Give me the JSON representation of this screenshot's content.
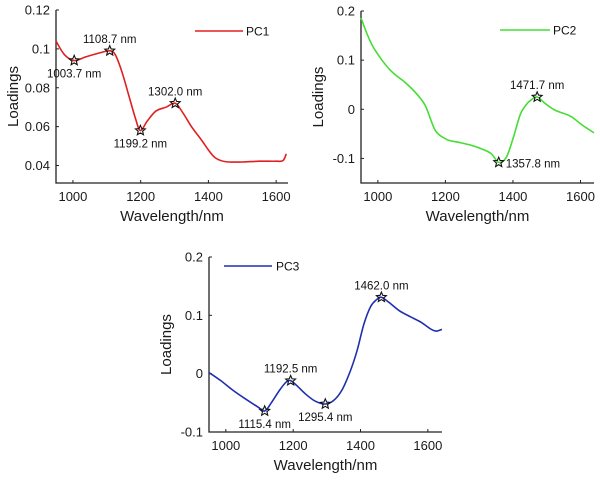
{
  "chart_data": [
    {
      "type": "line",
      "id": "pc1",
      "xlabel": "Wavelength/nm",
      "ylabel": "Loadings",
      "xlim": [
        950,
        1635
      ],
      "ylim": [
        0.031,
        0.12
      ],
      "xticks": [
        1000,
        1200,
        1400,
        1600
      ],
      "xtick_labels": [
        "1000",
        "1200",
        "1400",
        "1600"
      ],
      "yticks": [
        0.04,
        0.06,
        0.08,
        0.1,
        0.12
      ],
      "ytick_labels": [
        "0.04",
        "0.06",
        "0.08",
        "0.1",
        "0.12"
      ],
      "legend": {
        "label": "PC1",
        "placement": "top-right"
      },
      "color": "#e02020",
      "series": [
        {
          "name": "PC1",
          "x": [
            950,
            975,
            1003.7,
            1040,
            1080,
            1108.7,
            1125,
            1145,
            1165,
            1185,
            1199.2,
            1220,
            1245,
            1275,
            1302.0,
            1325,
            1350,
            1380,
            1400,
            1420,
            1450,
            1500,
            1550,
            1600,
            1620,
            1630
          ],
          "y": [
            0.104,
            0.097,
            0.094,
            0.096,
            0.098,
            0.099,
            0.097,
            0.088,
            0.076,
            0.064,
            0.058,
            0.063,
            0.068,
            0.07,
            0.072,
            0.067,
            0.06,
            0.053,
            0.048,
            0.044,
            0.042,
            0.0418,
            0.0422,
            0.0422,
            0.0425,
            0.046
          ]
        }
      ],
      "annotations": [
        {
          "x": 1003.7,
          "y": 0.094,
          "text": "1003.7 nm",
          "pos": "below"
        },
        {
          "x": 1108.7,
          "y": 0.099,
          "text": "1108.7 nm",
          "pos": "above"
        },
        {
          "x": 1199.2,
          "y": 0.058,
          "text": "1199.2 nm",
          "pos": "below"
        },
        {
          "x": 1302.0,
          "y": 0.072,
          "text": "1302.0 nm",
          "pos": "above"
        }
      ]
    },
    {
      "type": "line",
      "id": "pc2",
      "xlabel": "Wavelength/nm",
      "ylabel": "Loadings",
      "xlim": [
        950,
        1640
      ],
      "ylim": [
        -0.15,
        0.2
      ],
      "xticks": [
        1000,
        1200,
        1400,
        1600
      ],
      "xtick_labels": [
        "1000",
        "1200",
        "1400",
        "1600"
      ],
      "yticks": [
        -0.1,
        0,
        0.1,
        0.2
      ],
      "ytick_labels": [
        "-0.1",
        "0",
        "0.1",
        "0.2"
      ],
      "legend": {
        "label": "PC2",
        "placement": "top-right"
      },
      "color": "#44dd33",
      "series": [
        {
          "name": "PC2",
          "x": [
            950,
            970,
            992,
            1036,
            1080,
            1110,
            1140,
            1170,
            1200,
            1215,
            1245,
            1275,
            1305,
            1335,
            1357.8,
            1380,
            1400,
            1422,
            1440,
            1452,
            1471.7,
            1495,
            1525,
            1570,
            1605,
            1640
          ],
          "y": [
            0.186,
            0.15,
            0.12,
            0.08,
            0.055,
            0.035,
            0.008,
            -0.043,
            -0.06,
            -0.064,
            -0.068,
            -0.073,
            -0.08,
            -0.09,
            -0.108,
            -0.098,
            -0.06,
            -0.01,
            0.01,
            0.018,
            0.025,
            0.012,
            -0.002,
            -0.014,
            -0.032,
            -0.048
          ]
        }
      ],
      "annotations": [
        {
          "x": 1357.8,
          "y": -0.108,
          "text": "1357.8 nm",
          "pos": "right"
        },
        {
          "x": 1471.7,
          "y": 0.025,
          "text": "1471.7 nm",
          "pos": "above"
        }
      ]
    },
    {
      "type": "line",
      "id": "pc3",
      "xlabel": "Wavelength/nm",
      "ylabel": "Loadings",
      "xlim": [
        950,
        1642
      ],
      "ylim": [
        -0.1,
        0.2
      ],
      "xticks": [
        1000,
        1200,
        1400,
        1600
      ],
      "xtick_labels": [
        "1000",
        "1200",
        "1400",
        "1600"
      ],
      "yticks": [
        -0.1,
        0,
        0.1,
        0.2
      ],
      "ytick_labels": [
        "-0.1",
        "0",
        "0.1",
        "0.2"
      ],
      "legend": {
        "label": "PC3",
        "placement": "top-left"
      },
      "color": "#1f2fb0",
      "series": [
        {
          "name": "PC3",
          "x": [
            950,
            985,
            1020,
            1060,
            1095,
            1115.4,
            1135,
            1160,
            1180,
            1192.5,
            1210,
            1235,
            1265,
            1295.4,
            1320,
            1345,
            1370,
            1390,
            1410,
            1430,
            1448,
            1462.0,
            1485,
            1515,
            1550,
            1580,
            1610,
            1625,
            1642
          ],
          "y": [
            0.002,
            -0.012,
            -0.028,
            -0.044,
            -0.057,
            -0.064,
            -0.05,
            -0.028,
            -0.014,
            -0.012,
            -0.02,
            -0.034,
            -0.047,
            -0.052,
            -0.046,
            -0.028,
            0.005,
            0.04,
            0.085,
            0.115,
            0.127,
            0.131,
            0.122,
            0.108,
            0.097,
            0.088,
            0.076,
            0.073,
            0.076
          ]
        }
      ],
      "annotations": [
        {
          "x": 1115.4,
          "y": -0.064,
          "text": "1115.4 nm",
          "pos": "below"
        },
        {
          "x": 1192.5,
          "y": -0.012,
          "text": "1192.5 nm",
          "pos": "above"
        },
        {
          "x": 1295.4,
          "y": -0.052,
          "text": "1295.4 nm",
          "pos": "below"
        },
        {
          "x": 1462.0,
          "y": 0.131,
          "text": "1462.0 nm",
          "pos": "above"
        }
      ]
    }
  ]
}
